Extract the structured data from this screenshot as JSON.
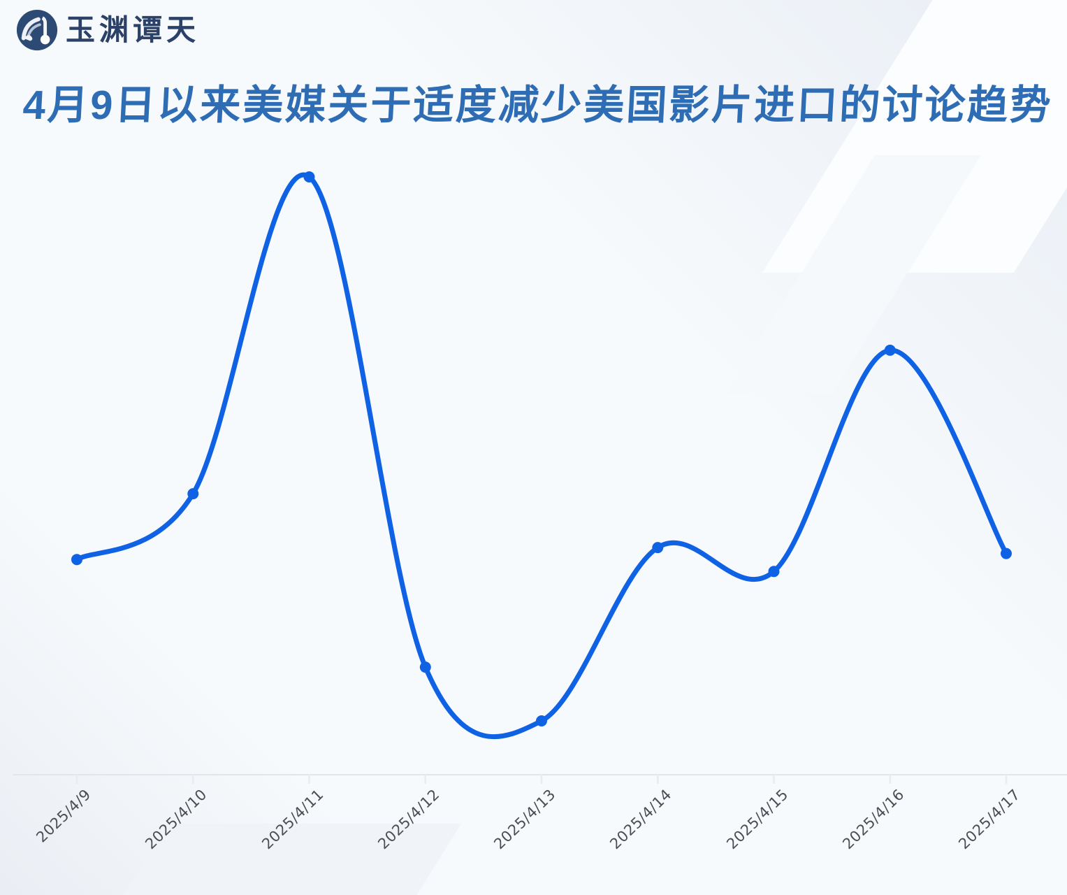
{
  "brand": {
    "logo_text": "玉渊谭天",
    "logo_icon": "wave-circle-logo"
  },
  "title": "4月9日以来美媒关于适度减少美国影片进口的讨论趋势",
  "colors": {
    "line_blue": "#1062e5",
    "title_blue": "#2e6cb4",
    "logo_navy": "#2c4a74",
    "axis_line": "#e2e6ea",
    "tick_line": "#e9ecef",
    "label_gray": "#4a4d52",
    "background": "#f7fafc"
  },
  "chart_data": {
    "type": "line",
    "title": "4月9日以来美媒关于适度减少美国影片进口的讨论趋势",
    "x": [
      "2025/4/9",
      "2025/4/10",
      "2025/4/11",
      "2025/4/12",
      "2025/4/13",
      "2025/4/14",
      "2025/4/15",
      "2025/4/16",
      "2025/4/17"
    ],
    "values": [
      36,
      47,
      100,
      18,
      9,
      38,
      34,
      71,
      37
    ],
    "xlabel": "",
    "ylabel": "",
    "ylim": [
      0,
      105
    ],
    "y_axis_visible": false,
    "grid": false,
    "legend": null,
    "smooth": true,
    "point_markers": true,
    "x_label_rotation": -44
  }
}
